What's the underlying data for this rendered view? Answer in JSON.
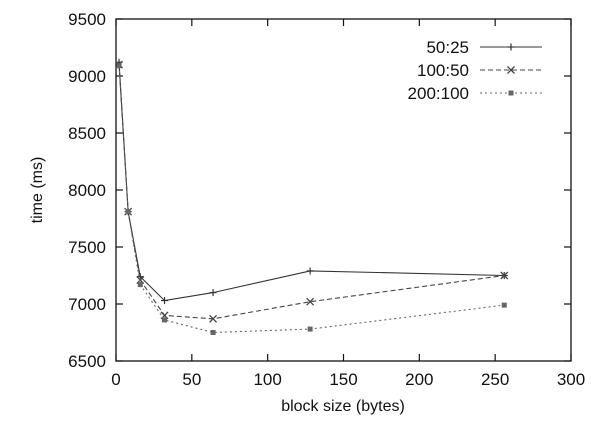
{
  "chart_data": {
    "type": "line",
    "xlabel": "block size (bytes)",
    "ylabel": "time (ms)",
    "xlim": [
      0,
      300
    ],
    "ylim": [
      6500,
      9500
    ],
    "xticks": [
      0,
      50,
      100,
      150,
      200,
      250,
      300
    ],
    "yticks": [
      6500,
      7000,
      7500,
      8000,
      8500,
      9000,
      9500
    ],
    "grid": false,
    "legend_position": "top-right",
    "series": [
      {
        "name": "50:25",
        "color": "#333333",
        "dash": "solid",
        "marker": "plus",
        "x": [
          2,
          8,
          16,
          32,
          64,
          128,
          256
        ],
        "y": [
          9120,
          7810,
          7240,
          7030,
          7100,
          7290,
          7250
        ]
      },
      {
        "name": "100:50",
        "color": "#444444",
        "dash": "dashed",
        "marker": "cross",
        "x": [
          2,
          8,
          16,
          32,
          64,
          128,
          256
        ],
        "y": [
          9100,
          7810,
          7210,
          6900,
          6870,
          7020,
          7250
        ]
      },
      {
        "name": "200:100",
        "color": "#666666",
        "dash": "dotted",
        "marker": "square",
        "x": [
          2,
          8,
          16,
          32,
          64,
          128,
          256
        ],
        "y": [
          9090,
          7810,
          7170,
          6860,
          6750,
          6780,
          6990
        ]
      }
    ]
  }
}
